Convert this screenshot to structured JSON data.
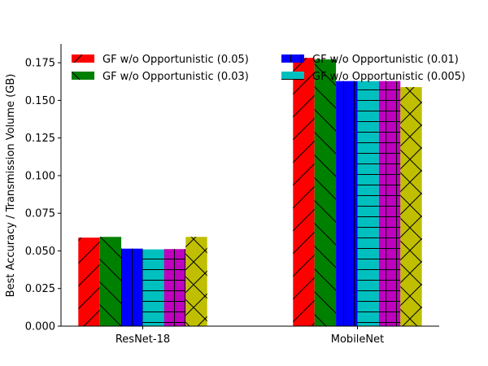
{
  "chart_data": {
    "type": "bar",
    "title": "",
    "xlabel": "",
    "ylabel": "Best Accuracy / Transmission Volume (GB)",
    "ylim": [
      0,
      0.1875
    ],
    "yticks": [
      "0.000",
      "0.025",
      "0.050",
      "0.075",
      "0.100",
      "0.125",
      "0.150",
      "0.175"
    ],
    "categories": [
      "ResNet-18",
      "MobileNet"
    ],
    "grid": false,
    "legend_position": "top",
    "series": [
      {
        "name": "GF w/o Opportunistic (0.05)",
        "color": "#ff0000",
        "hatch": "diagonal",
        "values": [
          0.0588,
          0.1782
        ],
        "in_legend": true
      },
      {
        "name": "GF w/o Opportunistic (0.03)",
        "color": "#008000",
        "hatch": "backslash",
        "values": [
          0.0593,
          0.1772
        ],
        "in_legend": true
      },
      {
        "name": "GF w/o Opportunistic (0.01)",
        "color": "#0000ff",
        "hatch": "vertical",
        "values": [
          0.0515,
          0.1628
        ],
        "in_legend": true
      },
      {
        "name": "GF w/o Opportunistic (0.005)",
        "color": "#00bfbf",
        "hatch": "horizontal",
        "values": [
          0.051,
          0.1628
        ],
        "in_legend": true
      },
      {
        "color": "#bf00bf",
        "hatch": "grid",
        "values": [
          0.0512,
          0.1628
        ],
        "in_legend": false
      },
      {
        "color": "#bfbf00",
        "hatch": "crosshatch",
        "values": [
          0.0593,
          0.1588
        ],
        "in_legend": false
      }
    ]
  }
}
